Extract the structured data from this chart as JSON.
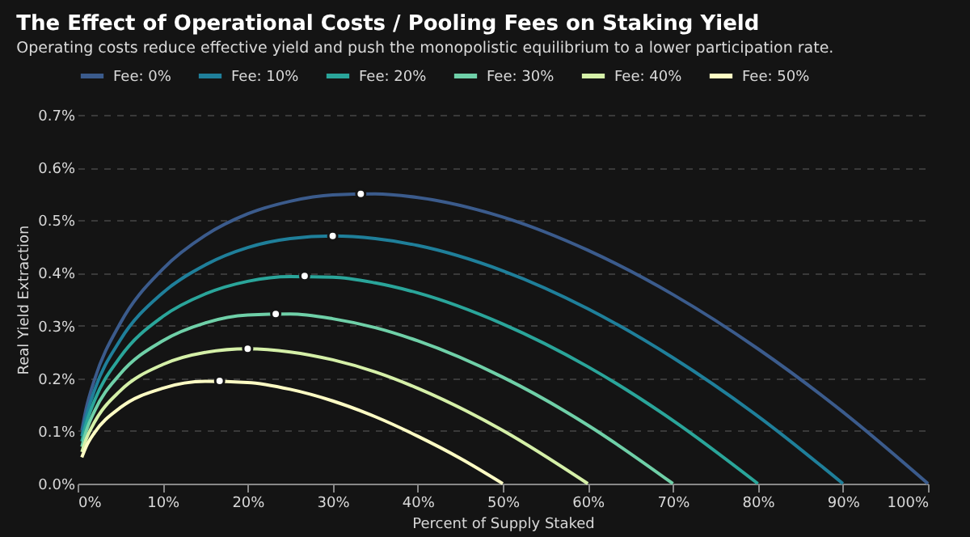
{
  "chart_data": {
    "type": "line",
    "title": "The Effect of Operational Costs / Pooling Fees on Staking Yield",
    "subtitle": "Operating costs reduce effective yield and push the monopolistic equilibrium to a lower participation rate.",
    "xlabel": "Percent of Supply Staked",
    "ylabel": "Real Yield Extraction",
    "xlim": [
      0,
      100
    ],
    "ylim": [
      0,
      0.7
    ],
    "xticks": [
      {
        "value": 0,
        "label": "0%"
      },
      {
        "value": 10,
        "label": "10%"
      },
      {
        "value": 20,
        "label": "20%"
      },
      {
        "value": 30,
        "label": "30%"
      },
      {
        "value": 40,
        "label": "40%"
      },
      {
        "value": 50,
        "label": "50%"
      },
      {
        "value": 60,
        "label": "60%"
      },
      {
        "value": 70,
        "label": "70%"
      },
      {
        "value": 80,
        "label": "80%"
      },
      {
        "value": 90,
        "label": "90%"
      },
      {
        "value": 100,
        "label": "100%"
      }
    ],
    "yticks": [
      {
        "value": 0,
        "label": "0.0%"
      },
      {
        "value": 0.1,
        "label": "0.1%"
      },
      {
        "value": 0.2,
        "label": "0.2%"
      },
      {
        "value": 0.3,
        "label": "0.3%"
      },
      {
        "value": 0.4,
        "label": "0.4%"
      },
      {
        "value": 0.5,
        "label": "0.5%"
      },
      {
        "value": 0.6,
        "label": "0.6%"
      },
      {
        "value": 0.7,
        "label": "0.7%"
      }
    ],
    "grid": "y",
    "legend": "top",
    "marker": "none",
    "line_style": "solid",
    "series": [
      {
        "name": "Fee: 0%",
        "color": "#3b5b8c",
        "x": [
          0.5,
          1,
          2,
          5,
          10,
          15,
          20,
          25,
          30,
          35,
          40,
          50,
          60,
          70,
          80,
          90,
          100
        ],
        "values": [
          0.101,
          0.142,
          0.198,
          0.304,
          0.407,
          0.471,
          0.512,
          0.536,
          0.548,
          0.55,
          0.543,
          0.506,
          0.443,
          0.359,
          0.256,
          0.136,
          0
        ]
      },
      {
        "name": "Fee: 10%",
        "color": "#1f7f9a",
        "x": [
          0.5,
          1,
          2,
          5,
          10,
          15,
          20,
          25,
          30,
          35,
          40,
          50,
          60,
          70,
          80,
          90
        ],
        "values": [
          0.09,
          0.127,
          0.178,
          0.272,
          0.362,
          0.415,
          0.448,
          0.465,
          0.47,
          0.465,
          0.452,
          0.404,
          0.332,
          0.239,
          0.128,
          0
        ]
      },
      {
        "name": "Fee: 20%",
        "color": "#2aa59a",
        "x": [
          0.5,
          1,
          2,
          5,
          10,
          15,
          20,
          25,
          30,
          35,
          40,
          50,
          60,
          70,
          80
        ],
        "values": [
          0.08,
          0.113,
          0.158,
          0.24,
          0.317,
          0.36,
          0.384,
          0.393,
          0.392,
          0.381,
          0.362,
          0.303,
          0.222,
          0.12,
          0
        ]
      },
      {
        "name": "Fee: 30%",
        "color": "#6fd0a8",
        "x": [
          0.5,
          1,
          2,
          5,
          10,
          15,
          20,
          25,
          30,
          35,
          40,
          50,
          60,
          70
        ],
        "values": [
          0.07,
          0.099,
          0.138,
          0.208,
          0.271,
          0.305,
          0.32,
          0.322,
          0.313,
          0.296,
          0.271,
          0.202,
          0.111,
          0
        ]
      },
      {
        "name": "Fee: 40%",
        "color": "#d5f0a8",
        "x": [
          0.5,
          1,
          2,
          5,
          10,
          15,
          20,
          25,
          30,
          35,
          40,
          50,
          60
        ],
        "values": [
          0.06,
          0.084,
          0.117,
          0.176,
          0.226,
          0.249,
          0.256,
          0.25,
          0.235,
          0.212,
          0.181,
          0.101,
          0
        ]
      },
      {
        "name": "Fee: 50%",
        "color": "#fdfcc4",
        "x": [
          0.5,
          1,
          2,
          5,
          10,
          15,
          20,
          25,
          30,
          35,
          40,
          45,
          50
        ],
        "values": [
          0.05,
          0.07,
          0.097,
          0.144,
          0.181,
          0.194,
          0.192,
          0.179,
          0.157,
          0.127,
          0.09,
          0.048,
          0
        ]
      },
      {
        "type": "scatter",
        "marker": "circle",
        "color": "#ffffff",
        "x": [
          33.3,
          30,
          26.7,
          23.3,
          20,
          16.7
        ],
        "values": [
          0.55,
          0.47,
          0.394,
          0.322,
          0.256,
          0.195
        ]
      }
    ]
  }
}
